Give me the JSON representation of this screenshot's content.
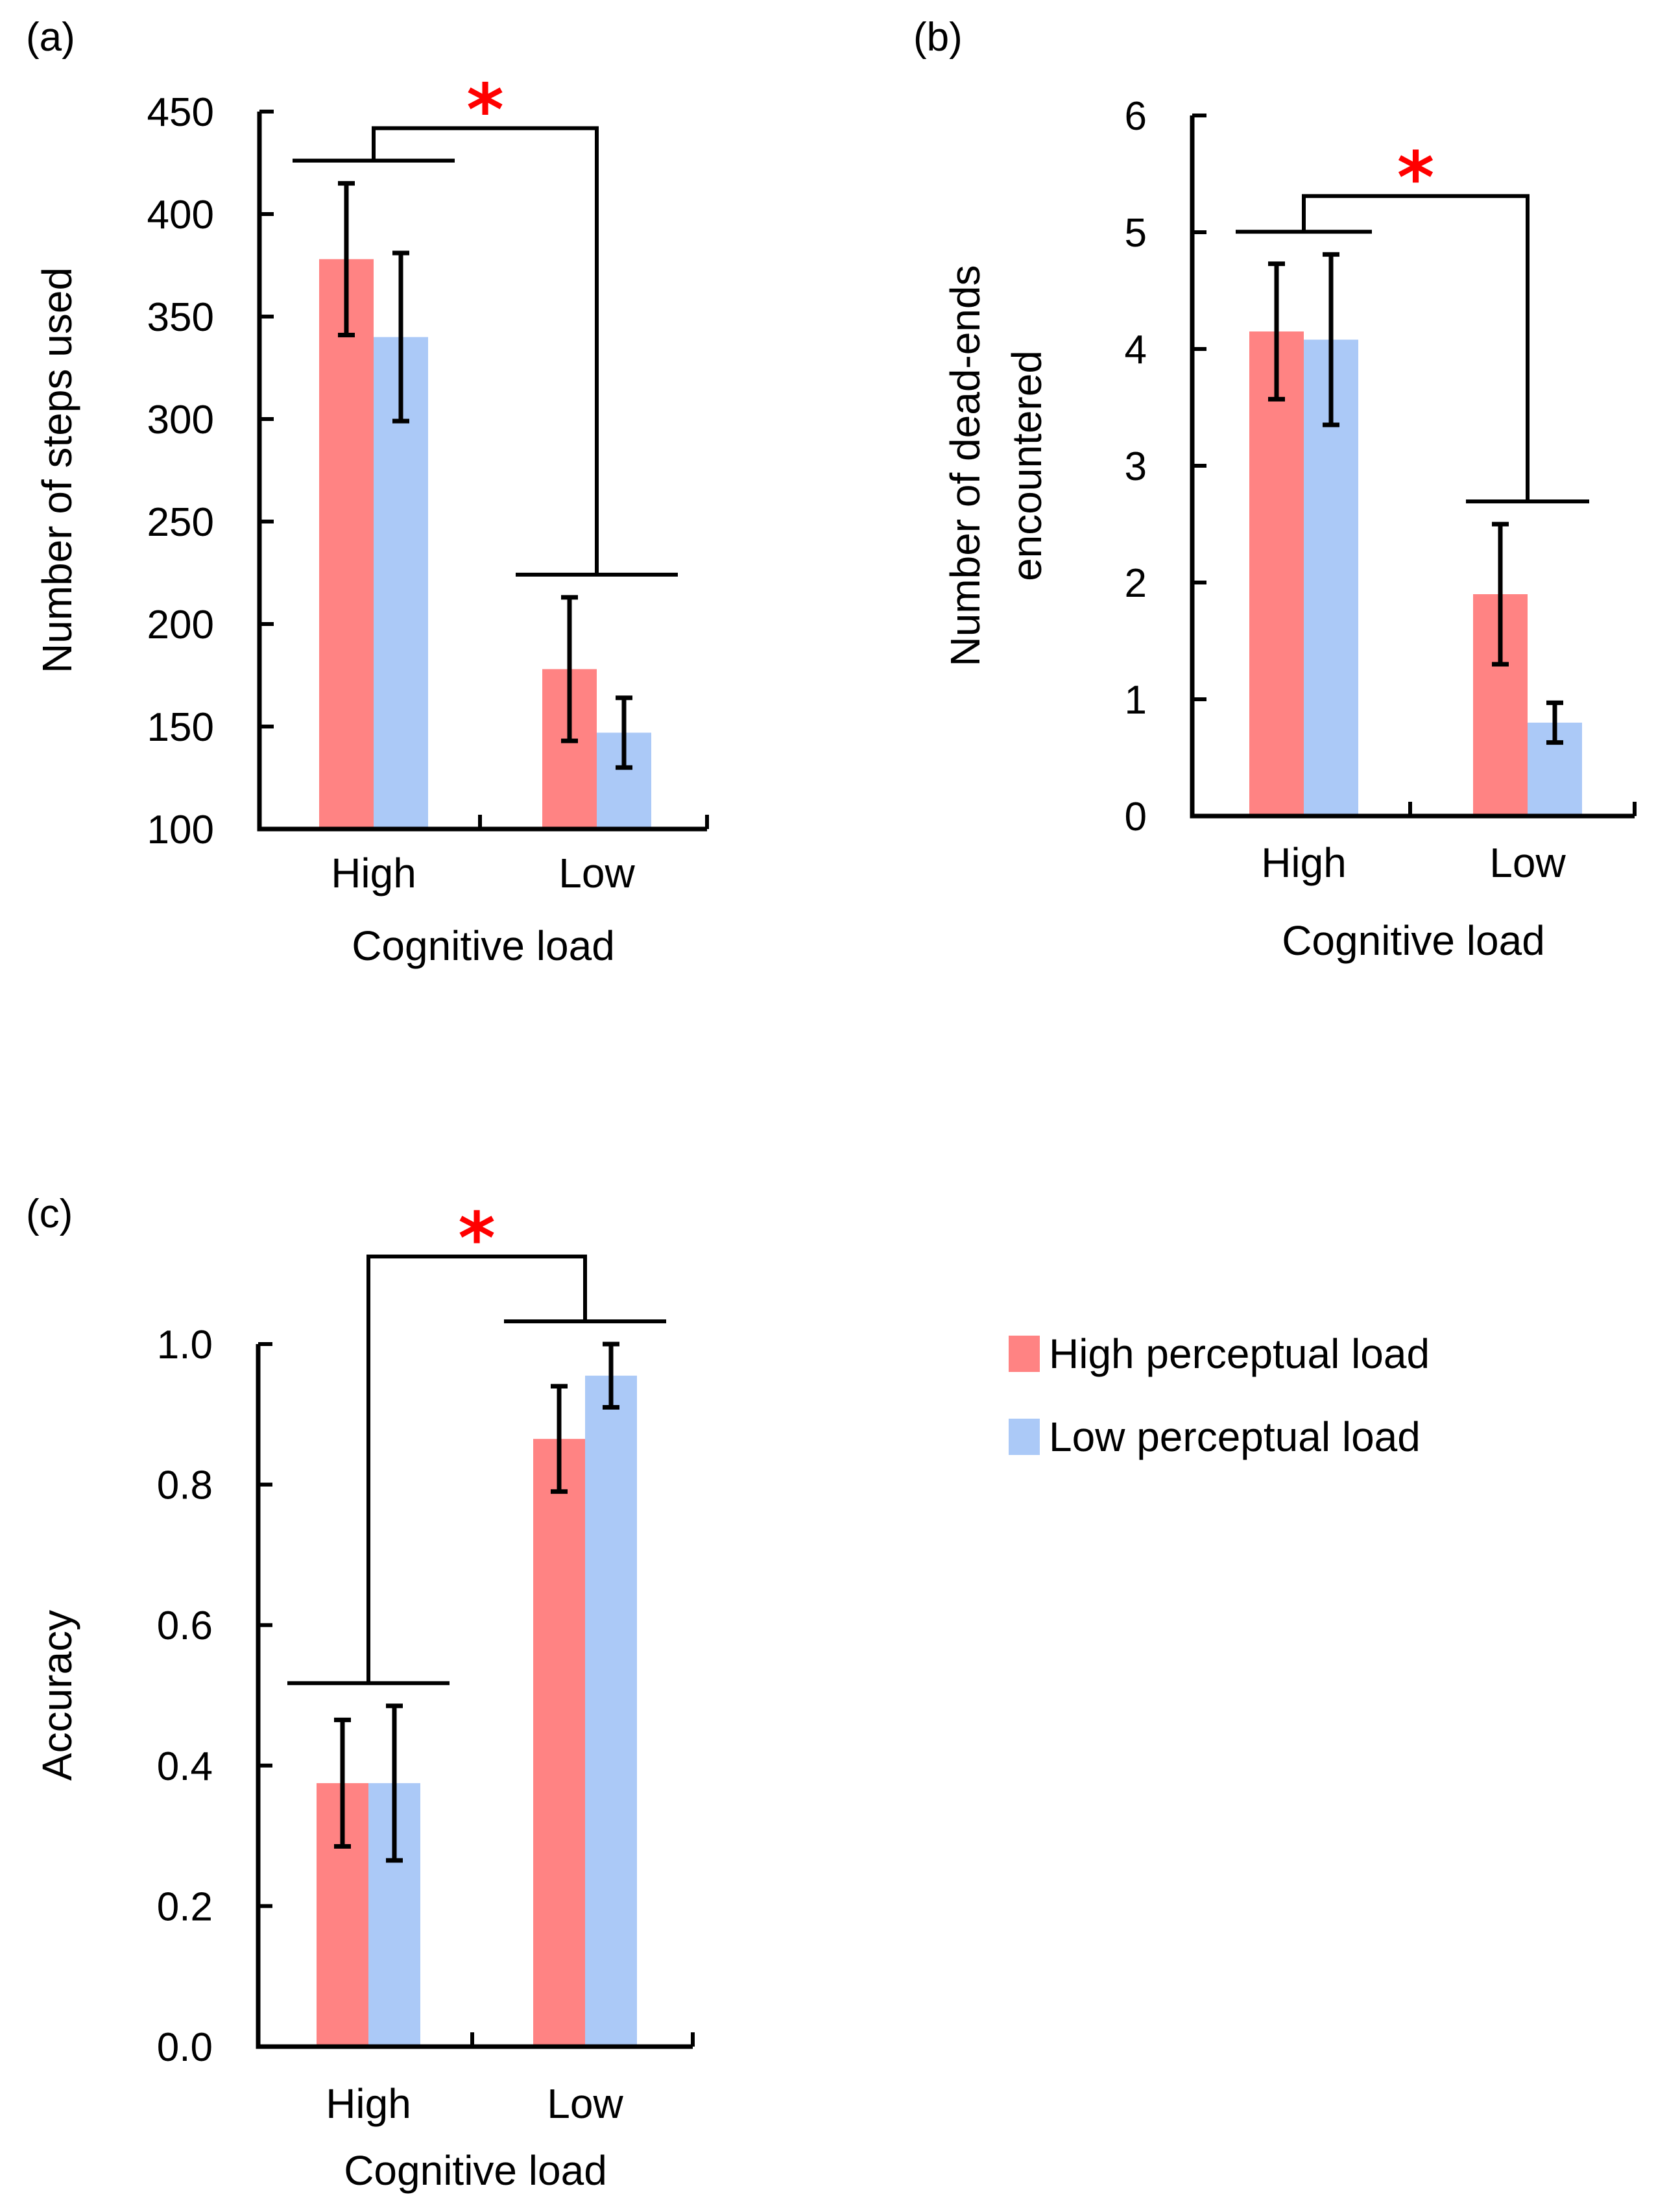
{
  "colors": {
    "high_perceptual": "#ff8383",
    "low_perceptual": "#abc9f7",
    "significance": "#ff0000"
  },
  "legend": [
    {
      "label": "High perceptual load",
      "color": "#ff8383"
    },
    {
      "label": "Low perceptual load",
      "color": "#abc9f7"
    }
  ],
  "chart_data": [
    {
      "panel": "(a)",
      "type": "bar",
      "xlabel": "Cognitive load",
      "ylabel": "Number of steps used",
      "categories": [
        "High",
        "Low"
      ],
      "ylim": [
        100,
        450
      ],
      "yticks": [
        "100",
        "150",
        "200",
        "250",
        "300",
        "350",
        "400",
        "450"
      ],
      "series": [
        {
          "name": "High perceptual load",
          "values": [
            378,
            178
          ],
          "errors": [
            37,
            35
          ]
        },
        {
          "name": "Low perceptual load",
          "values": [
            340,
            147
          ],
          "errors": [
            41,
            17
          ]
        }
      ],
      "significance": {
        "between": [
          "High",
          "Low"
        ],
        "marker": "*"
      }
    },
    {
      "panel": "(b)",
      "type": "bar",
      "xlabel": "Cognitive load",
      "ylabel": "Number of dead-ends encountered",
      "ylabel_lines": [
        "Number of dead-ends",
        "encountered"
      ],
      "categories": [
        "High",
        "Low"
      ],
      "ylim": [
        0,
        6
      ],
      "yticks": [
        "0",
        "1",
        "2",
        "3",
        "4",
        "5",
        "6"
      ],
      "series": [
        {
          "name": "High perceptual load",
          "values": [
            4.15,
            1.9
          ],
          "errors": [
            0.58,
            0.6
          ]
        },
        {
          "name": "Low perceptual load",
          "values": [
            4.08,
            0.8
          ],
          "errors": [
            0.73,
            0.17
          ]
        }
      ],
      "significance": {
        "between": [
          "High",
          "Low"
        ],
        "marker": "*"
      }
    },
    {
      "panel": "(c)",
      "type": "bar",
      "xlabel": "Cognitive load",
      "ylabel": "Accuracy",
      "categories": [
        "High",
        "Low"
      ],
      "ylim": [
        0,
        1
      ],
      "yticks": [
        "0.0",
        "0.2",
        "0.4",
        "0.6",
        "0.8",
        "1.0"
      ],
      "series": [
        {
          "name": "High perceptual load",
          "values": [
            0.375,
            0.865
          ],
          "errors": [
            0.09,
            0.075
          ]
        },
        {
          "name": "Low perceptual load",
          "values": [
            0.375,
            0.955
          ],
          "errors": [
            0.11,
            0.045
          ]
        }
      ],
      "significance": {
        "between": [
          "High",
          "Low"
        ],
        "marker": "*"
      }
    }
  ]
}
